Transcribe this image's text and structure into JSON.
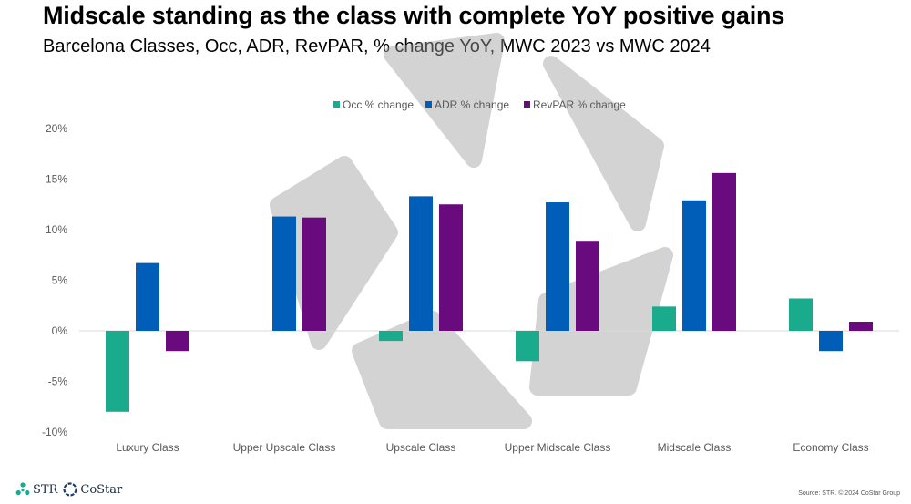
{
  "title": "Midscale standing as the class with complete YoY positive gains",
  "subtitle": "Barcelona Classes, Occ, ADR, RevPAR, % change YoY, MWC 2023 vs MWC 2024",
  "chart_data": {
    "type": "bar",
    "categories": [
      "Luxury Class",
      "Upper Upscale Class",
      "Upscale Class",
      "Upper Midscale Class",
      "Midscale Class",
      "Economy Class"
    ],
    "series": [
      {
        "name": "Occ % change",
        "color": "#1aaa8c",
        "values": [
          -8.0,
          0,
          -1.0,
          -3.0,
          2.4,
          3.2
        ]
      },
      {
        "name": "ADR % change",
        "color": "#005eb8",
        "values": [
          6.7,
          11.3,
          13.3,
          12.7,
          12.9,
          -2.0
        ]
      },
      {
        "name": "RevPAR % change",
        "color": "#6a0a7f",
        "values": [
          -2.0,
          11.2,
          12.5,
          8.9,
          15.6,
          0.9
        ]
      }
    ],
    "y_ticks": [
      "-10%",
      "-5%",
      "0%",
      "5%",
      "10%",
      "15%",
      "20%"
    ],
    "ylim": [
      -10,
      20
    ],
    "legend": "top-center"
  },
  "logos": {
    "str": "STR",
    "costar": "CoStar"
  },
  "source": "Source: STR. © 2024 CoStar Group"
}
